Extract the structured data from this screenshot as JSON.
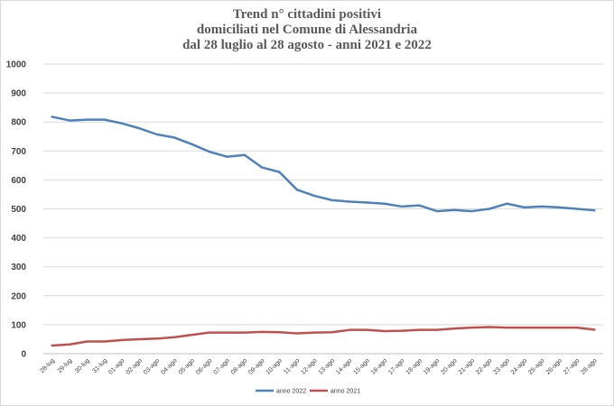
{
  "chart_data": {
    "type": "line",
    "title_lines": [
      "Trend n° cittadini positivi",
      "domiciliati nel Comune di Alessandria",
      "dal 28 luglio al 28 agosto - anni 2021 e 2022"
    ],
    "categories": [
      "28-lug",
      "29-lug",
      "30-lug",
      "31-lug",
      "01-ago",
      "02-ago",
      "03-ago",
      "04-ago",
      "05-ago",
      "06-ago",
      "07-ago",
      "08-ago",
      "09-ago",
      "10-ago",
      "11-ago",
      "12-ago",
      "13-ago",
      "14-ago",
      "15-ago",
      "16-ago",
      "17-ago",
      "18-ago",
      "19-ago",
      "20-ago",
      "21-ago",
      "22-ago",
      "23-ago",
      "24-ago",
      "25-ago",
      "26-ago",
      "27-ago",
      "28-ago"
    ],
    "ylim": [
      0,
      1000
    ],
    "yticks": [
      "0",
      "100",
      "200",
      "300",
      "400",
      "500",
      "600",
      "700",
      "800",
      "900",
      "1000"
    ],
    "grid": true,
    "legend_position": "bottom",
    "series": [
      {
        "name": "anno 2022",
        "color": "#4f81bd",
        "values": [
          818,
          805,
          808,
          808,
          795,
          778,
          757,
          746,
          723,
          697,
          680,
          686,
          643,
          627,
          566,
          545,
          530,
          525,
          522,
          518,
          508,
          512,
          492,
          496,
          492,
          500,
          518,
          505,
          508,
          505,
          500,
          495
        ]
      },
      {
        "name": "anno 2021",
        "color": "#c0504d",
        "values": [
          28,
          32,
          42,
          42,
          47,
          50,
          52,
          57,
          65,
          73,
          73,
          73,
          75,
          74,
          70,
          73,
          74,
          82,
          82,
          78,
          79,
          82,
          82,
          87,
          90,
          92,
          90,
          90,
          90,
          90,
          90,
          83
        ]
      }
    ]
  }
}
